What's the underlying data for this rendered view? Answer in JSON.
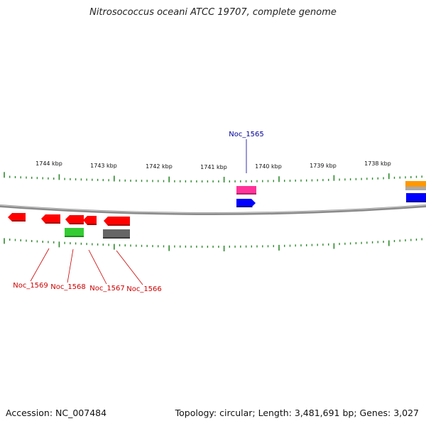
{
  "title": "Nitrosococcus oceani ATCC 19707, complete genome",
  "footer": {
    "accession": "Accession: NC_007484",
    "summary": "Topology: circular; Length: 3,481,691 bp; Genes: 3,027"
  },
  "scale": {
    "tick_labels": [
      "1744 kbp",
      "1743 kbp",
      "1742 kbp",
      "1741 kbp",
      "1740 kbp",
      "1739 kbp",
      "1738 kbp"
    ]
  },
  "gene_labels": {
    "top": [
      "Noc_1565"
    ],
    "bottom": [
      "Noc_1569",
      "Noc_1568",
      "Noc_1567",
      "Noc_1566"
    ]
  },
  "colors": {
    "backbone": "#888888",
    "tick": "#2e8b2e",
    "forward_cds": "#0000ff",
    "reverse_cds": "#ff0000",
    "rna": "#ff3399",
    "green_feature": "#33cc33",
    "gray_feature": "#666666",
    "orange_feature": "#ff9900",
    "top_label": "#000099",
    "bottom_label": "#cc0000"
  }
}
